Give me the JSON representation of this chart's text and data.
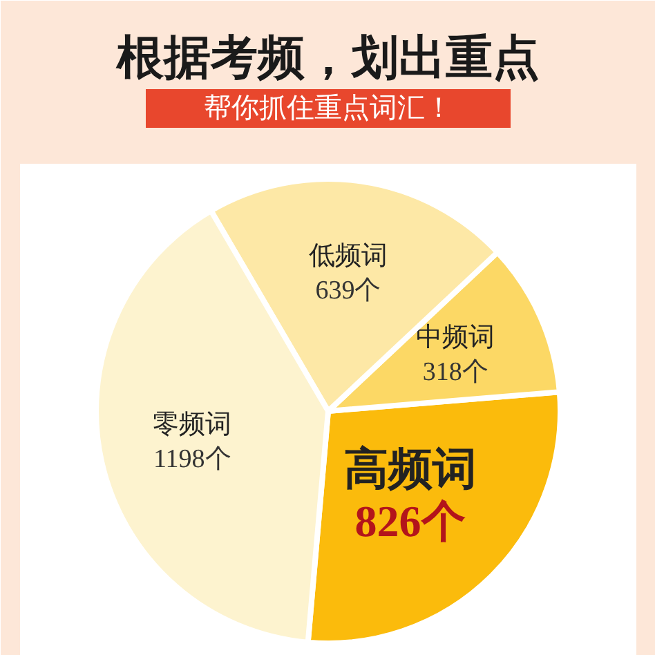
{
  "chart_data": {
    "type": "pie",
    "title": "根据考频，划出重点",
    "subtitle": "帮你抓住重点词汇！",
    "categories": [
      "高频词",
      "中频词",
      "低频词",
      "零频词"
    ],
    "values": [
      826,
      318,
      639,
      1198
    ],
    "colors": [
      "#fbbb0c",
      "#fcd865",
      "#fde8a6",
      "#fdf3cf"
    ],
    "value_labels": [
      "826个",
      "318个",
      "639个",
      "1198个"
    ]
  }
}
